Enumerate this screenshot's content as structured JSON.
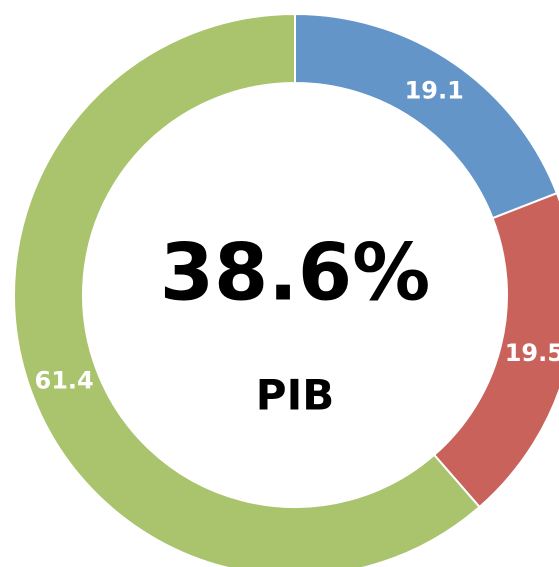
{
  "chart_data": {
    "type": "donut",
    "categories": [
      null,
      null,
      null
    ],
    "values": [
      19.1,
      19.5,
      61.4
    ],
    "colors": [
      "#6495c9",
      "#c9625b",
      "#a9c46d"
    ],
    "center_label": "38.6%",
    "center_sublabel": "PIB"
  }
}
